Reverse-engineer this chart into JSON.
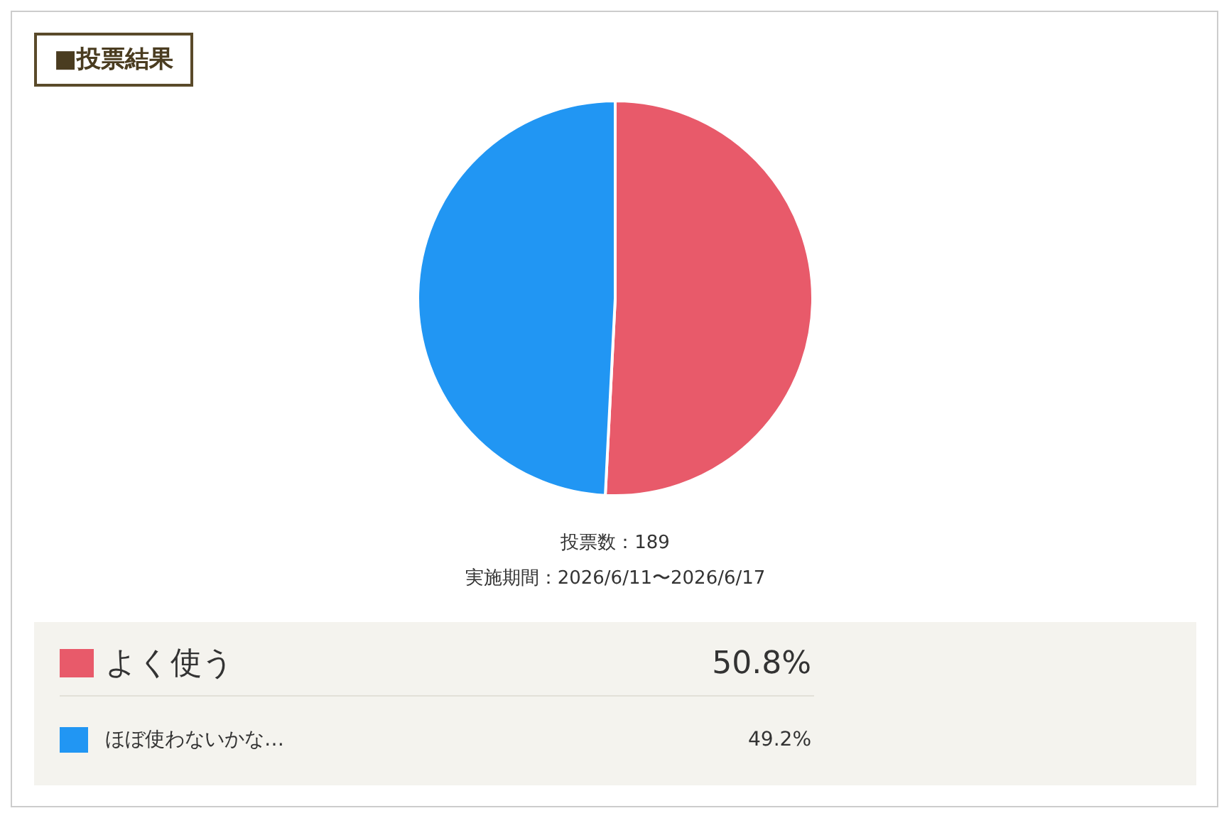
{
  "chart_data": {
    "type": "pie",
    "title": "■投票結果",
    "categories": [
      "よく使う",
      "ほぼ使わないかな…"
    ],
    "values": [
      50.8,
      49.2
    ],
    "colors": [
      "#e85a6a",
      "#2196f3"
    ],
    "value_labels": [
      "50.8%",
      "49.2%"
    ],
    "annotations": [
      "投票数：189",
      "実施期間：2026/6/11〜2026/6/17"
    ],
    "legend": "bottom"
  }
}
